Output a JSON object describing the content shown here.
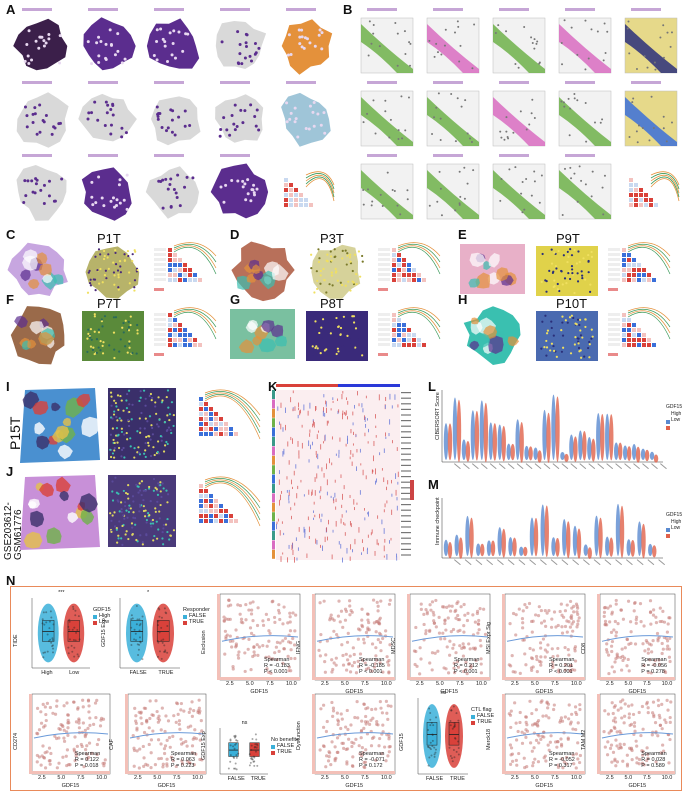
{
  "figure": {
    "panels": [
      "A",
      "B",
      "C",
      "D",
      "E",
      "F",
      "G",
      "H",
      "I",
      "J",
      "K",
      "L",
      "M",
      "N"
    ],
    "samples": {
      "C": "P1T",
      "D": "P3T",
      "E": "P9T",
      "F": "P7T",
      "G": "P8T",
      "H": "P10T",
      "I": "P15T",
      "J": "GSE203612-\nGSM61776"
    },
    "colors": {
      "purple": "#5b2d8e",
      "dark_purple": "#3b1f4a",
      "grey": "#d9d9d9",
      "orange": "#e4913b",
      "green": "#6fb24a",
      "pink": "#d96cc1",
      "teal": "#3bbfb0",
      "navy": "#2a2f7a",
      "red": "#d9413a",
      "blue": "#3a6fd9",
      "beige": "#c8b48c",
      "box_border": "#e98a5a"
    }
  },
  "panel_L": {
    "ylabel": "CIBERSORT Score",
    "legend_title": "GDF15",
    "legend_items": [
      "High",
      "Low"
    ]
  },
  "panel_M": {
    "ylabel": "Immune checkpoint",
    "legend_title": "GDF15",
    "legend_items": [
      "High",
      "Low"
    ]
  },
  "panel_N": {
    "plot1": {
      "ylabel": "TIDE",
      "x_cats": [
        "High",
        "Low"
      ],
      "legend_title": "GDF15",
      "legend_items": [
        "High",
        "Low"
      ],
      "sig": "***"
    },
    "plot2": {
      "ylabel": "GDF15 Exp",
      "x_cats": [
        "FALSE",
        "TRUE"
      ],
      "legend_title": "Responder",
      "legend_items": [
        "FALSE",
        "TRUE"
      ],
      "sig": "*"
    },
    "plot3": {
      "ylabel": "Exclusion",
      "xlabel": "GDF15",
      "stat": "Spearman",
      "R": "R = -0.183",
      "P": "P < 0.001"
    },
    "plot4": {
      "ylabel": "IFNG",
      "xlabel": "GDF15",
      "stat": "Spearman",
      "R": "R = -0.185",
      "P": "P < 0.001"
    },
    "plot5": {
      "ylabel": "MDSC",
      "xlabel": "GDF15",
      "stat": "Spearman",
      "R": "R = 0.212",
      "P": "P < 0.001"
    },
    "plot6": {
      "ylabel": "MSI Expr Sig",
      "xlabel": "GDF15",
      "stat": "Spearman",
      "R": "R = 0.201",
      "P": "P < 0.001"
    },
    "plot7": {
      "ylabel": "CD8",
      "xlabel": "GDF15",
      "stat": "Spearman",
      "R": "R = -0.056",
      "P": "P = 0.278"
    },
    "plot8": {
      "ylabel": "CD274",
      "xlabel": "GDF15",
      "stat": "Spearman",
      "R": "R = 0.122",
      "P": "P = 0.018"
    },
    "plot9": {
      "ylabel": "CAF",
      "xlabel": "GDF15",
      "stat": "Spearman",
      "R": "R = 0.063",
      "P": "P = 0.223"
    },
    "plot10": {
      "ylabel": "GDF15 Exp",
      "x_cats": [
        "FALSE",
        "TRUE"
      ],
      "legend_title": "No benefits",
      "legend_items": [
        "FALSE",
        "TRUE"
      ],
      "sig": "ns"
    },
    "plot11": {
      "ylabel": "Dysfunction",
      "xlabel": "GDF15",
      "stat": "Spearman",
      "R": "R = -0.071",
      "P": "P = 0.172"
    },
    "plot12": {
      "ylabel": "GDF15",
      "x_cats": [
        "FALSE",
        "TRUE"
      ],
      "legend_title": "CTL flag",
      "legend_items": [
        "FALSE",
        "TRUE"
      ],
      "sig": "ns"
    },
    "plot13": {
      "ylabel": "Merck18",
      "xlabel": "GDF15",
      "stat": "Spearman",
      "R": "R = -0.052",
      "P": "P = 0.317"
    },
    "plot14": {
      "ylabel": "TAM M2",
      "xlabel": "GDF15",
      "stat": "Spearman",
      "R": "R = 0.028",
      "P": "P = 0.589"
    },
    "xticks": [
      "2.5",
      "5.0",
      "7.5",
      "10.0"
    ]
  }
}
